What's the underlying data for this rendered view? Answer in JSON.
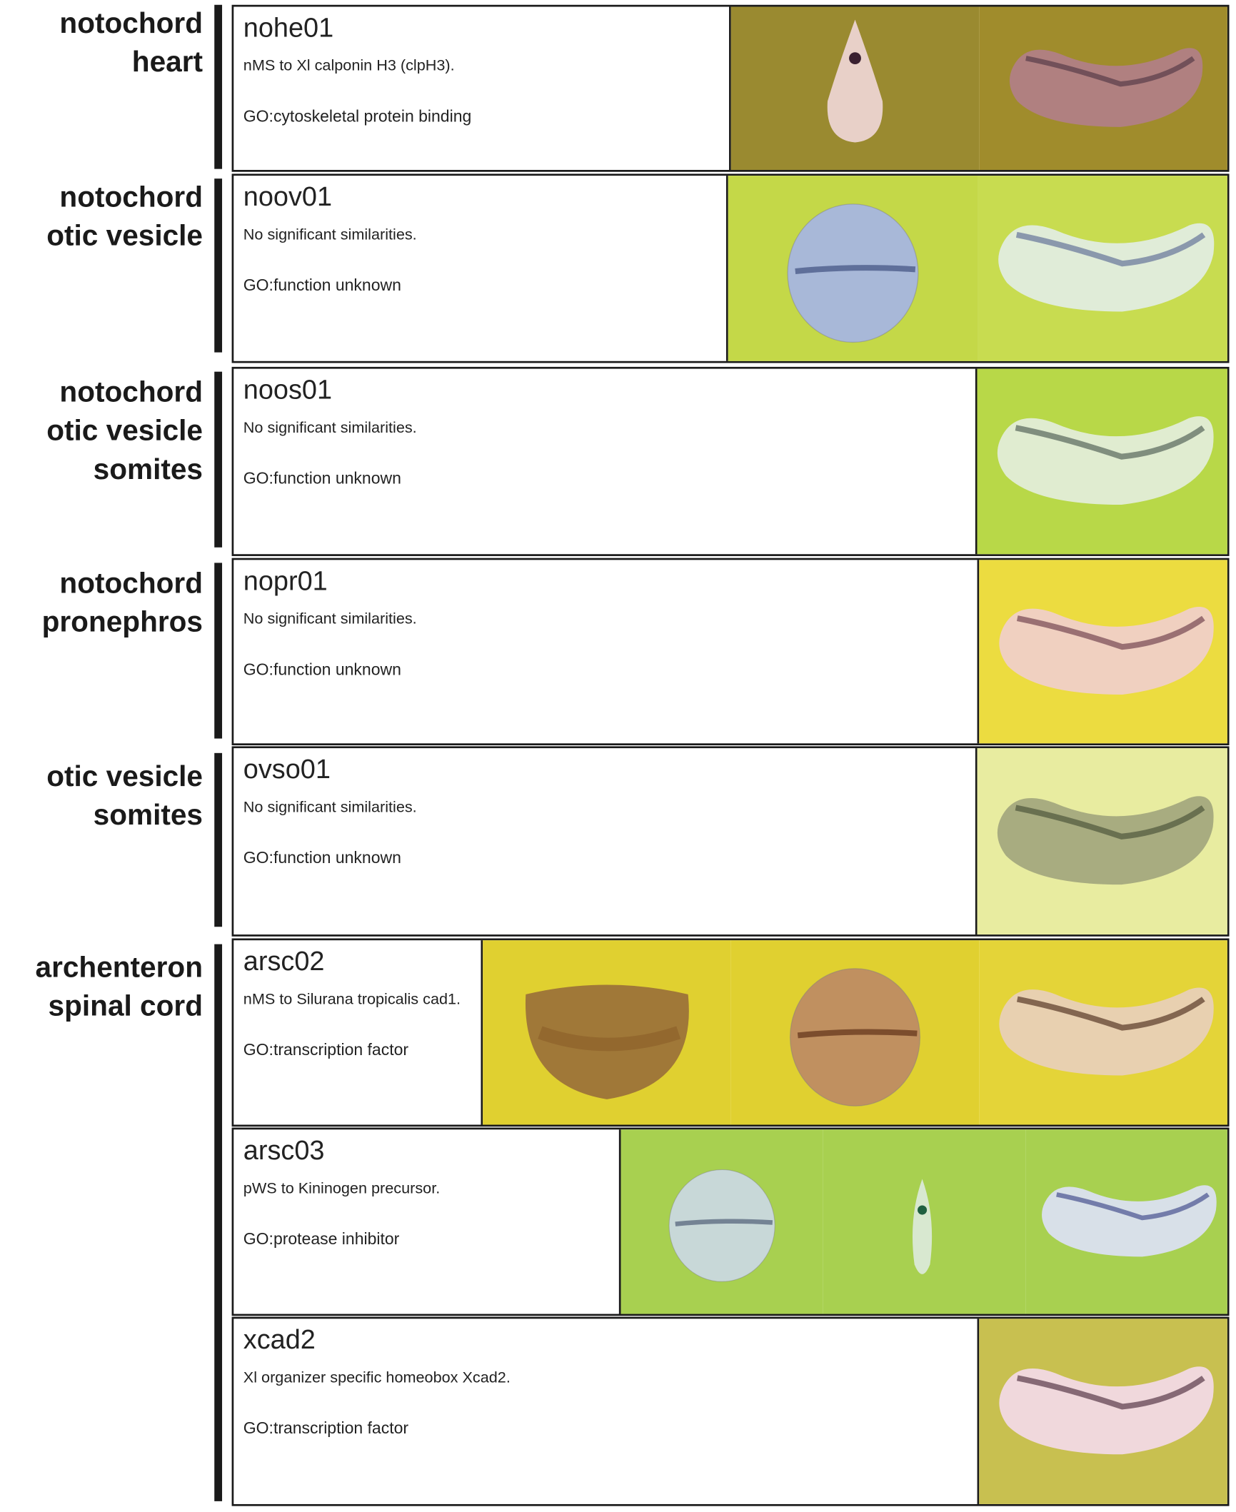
{
  "groups": [
    {
      "label": [
        "notochord",
        "heart"
      ]
    },
    {
      "label": [
        "notochord",
        "otic vesicle"
      ]
    },
    {
      "label": [
        "notochord",
        "otic vesicle",
        "somites"
      ]
    },
    {
      "label": [
        "notochord",
        "pronephros"
      ]
    },
    {
      "label": [
        "otic vesicle",
        "somites"
      ]
    },
    {
      "label": [
        "archenteron",
        "spinal cord"
      ]
    }
  ],
  "rows": [
    {
      "id": "nohe01",
      "description": "nMS to Xl calponin H3 (clpH3).",
      "go": "GO:cytoskeletal protein binding",
      "images": [
        {
          "shape": "teardrop",
          "bg": "#9a8a30",
          "body": "#e8d0c8",
          "stain": "#3a2030"
        },
        {
          "shape": "tadpole",
          "bg": "#a08c2c",
          "body": "#b08080",
          "stain": "#4a3040"
        }
      ]
    },
    {
      "id": "noov01",
      "description": "No significant similarities.",
      "go": "GO:function unknown",
      "images": [
        {
          "shape": "round",
          "bg": "#c4d848",
          "body": "#a8b8d8",
          "stain": "#405080"
        },
        {
          "shape": "tadpole",
          "bg": "#c8dc50",
          "body": "#e0ecd8",
          "stain": "#506090"
        }
      ]
    },
    {
      "id": "noos01",
      "description": "No significant similarities.",
      "go": "GO:function unknown",
      "images": [
        {
          "shape": "tadpole",
          "bg": "#b8d848",
          "body": "#e0ecd0",
          "stain": "#405048"
        }
      ]
    },
    {
      "id": "nopr01",
      "description": "No significant similarities.",
      "go": "GO:function unknown",
      "images": [
        {
          "shape": "tadpole",
          "bg": "#ecdc40",
          "body": "#f0d0c0",
          "stain": "#603040"
        }
      ]
    },
    {
      "id": "ovso01",
      "description": "No significant similarities.",
      "go": "GO:function unknown",
      "images": [
        {
          "shape": "tadpole",
          "bg": "#e8eca0",
          "body": "#a8ac80",
          "stain": "#404830"
        }
      ]
    },
    {
      "id": "arsc02",
      "description": "nMS to Silurana tropicalis cad1.",
      "go": "GO:transcription factor",
      "images": [
        {
          "shape": "half",
          "bg": "#e0d030",
          "body": "#a07838",
          "stain": "#805020"
        },
        {
          "shape": "round",
          "bg": "#e0d030",
          "body": "#c09060",
          "stain": "#603018"
        },
        {
          "shape": "tadpole",
          "bg": "#e4d438",
          "body": "#e8d0b0",
          "stain": "#402010"
        }
      ]
    },
    {
      "id": "arsc03",
      "description": "pWS to Kininogen precursor.",
      "go": "GO:protease inhibitor",
      "images": [
        {
          "shape": "round",
          "bg": "#a8d050",
          "body": "#c8d8d8",
          "stain": "#506078"
        },
        {
          "shape": "slim",
          "bg": "#a8d050",
          "body": "#d8e8d0",
          "stain": "#206040"
        },
        {
          "shape": "tadpole",
          "bg": "#a8d050",
          "body": "#d8e0e8",
          "stain": "#303880"
        }
      ]
    },
    {
      "id": "xcad2",
      "description": "Xl organizer specific homeobox Xcad2.",
      "go": "GO:transcription factor",
      "images": [
        {
          "shape": "tadpole",
          "bg": "#c8c050",
          "body": "#f0d8dc",
          "stain": "#402030"
        }
      ]
    }
  ]
}
